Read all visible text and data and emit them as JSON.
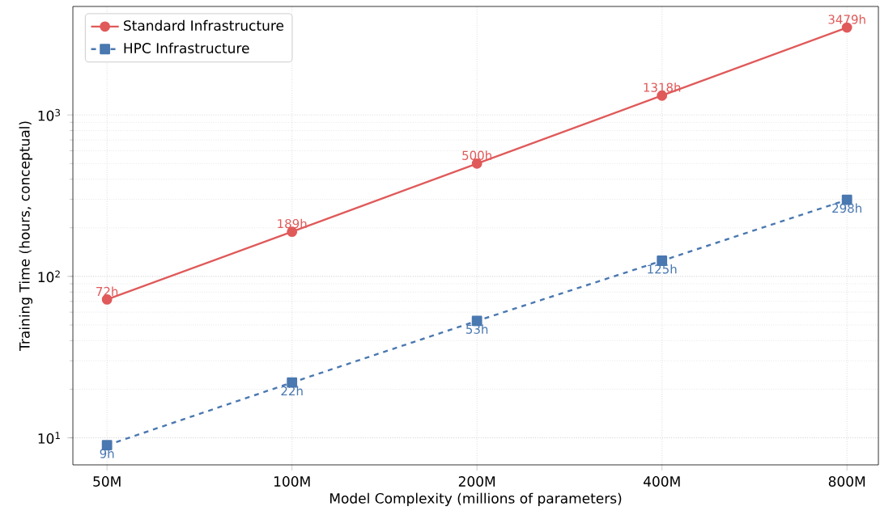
{
  "chart_data": {
    "type": "line",
    "xlabel": "Model Complexity  (millions of parameters)",
    "ylabel": "Training Time  (hours, conceptual)",
    "x": [
      50,
      100,
      200,
      400,
      800
    ],
    "series": [
      {
        "name": "Standard Infrastructure",
        "color": "#e05a5a",
        "values": [
          72,
          189,
          500,
          1318,
          3479
        ],
        "marker": "circle",
        "line_style": "solid",
        "value_labels": [
          "72h",
          "189h",
          "500h",
          "1318h",
          "3479h"
        ]
      },
      {
        "name": "HPC Infrastructure",
        "color": "#4a78b0",
        "values": [
          9,
          22,
          53,
          125,
          298
        ],
        "marker": "square",
        "line_style": "dashed",
        "value_labels": [
          "9h",
          "22h",
          "53h",
          "125h",
          "298h"
        ]
      }
    ],
    "log": "xy",
    "xlim": [
      44,
      900
    ],
    "ylim": [
      6.8,
      4700
    ],
    "xticks": [
      {
        "value": 50,
        "label": "50M"
      },
      {
        "value": 100,
        "label": "100M"
      },
      {
        "value": 200,
        "label": "200M"
      },
      {
        "value": 400,
        "label": "400M"
      },
      {
        "value": 800,
        "label": "800M"
      }
    ],
    "yticks": [
      {
        "value": 10,
        "label": "10$^{1}$"
      },
      {
        "value": 100,
        "label": "10$^{2}$"
      },
      {
        "value": 1000,
        "label": "10$^{3}$"
      }
    ],
    "grid": true,
    "legend": "top left"
  }
}
